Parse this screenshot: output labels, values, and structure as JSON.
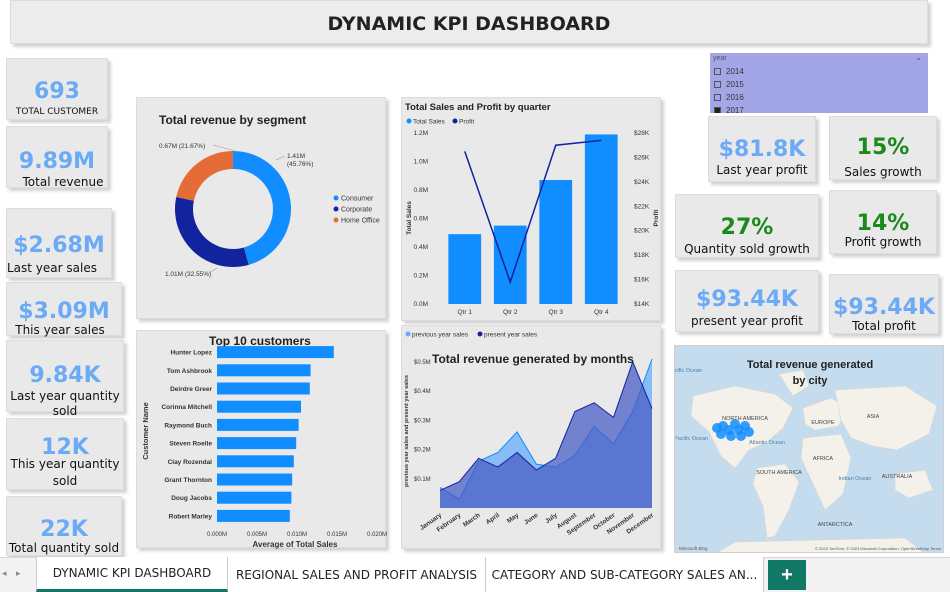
{
  "header": {
    "title": "DYNAMIC KPI DASHBOARD"
  },
  "kpis": {
    "total_customer": {
      "value": "693",
      "label": "TOTAL CUSTOMER"
    },
    "total_revenue": {
      "value": "9.89M",
      "label": "Total revenue"
    },
    "last_year_sales": {
      "value": "$2.68M",
      "label": "Last year sales"
    },
    "this_year_sales": {
      "value": "$3.09M",
      "label": "This year sales"
    },
    "last_year_qty": {
      "value": "9.84K",
      "label_1": "Last year quantity",
      "label_2": "sold"
    },
    "this_year_qty": {
      "value": "12K",
      "label_1": "This year quantity",
      "label_2": "sold"
    },
    "total_qty": {
      "value": "22K",
      "label": "Total quantity sold"
    },
    "last_year_profit": {
      "value": "$81.8K",
      "label": "Last year profit"
    },
    "sales_growth": {
      "value": "15%",
      "label": "Sales growth"
    },
    "qty_growth": {
      "value": "27%",
      "label": "Quantity sold growth"
    },
    "profit_growth": {
      "value": "14%",
      "label": "Profit growth"
    },
    "present_profit": {
      "value": "$93.44K",
      "label": "present year profit"
    },
    "total_profit": {
      "value": "$93.44K",
      "label": "Total profit"
    }
  },
  "slicer": {
    "title": "year",
    "items": [
      "2014",
      "2015",
      "2016",
      "2017"
    ]
  },
  "map": {
    "title_1": "Total revenue generated",
    "title_2": "by city",
    "labels": [
      "NORTH AMERICA",
      "EUROPE",
      "ASIA",
      "AFRICA",
      "SOUTH AMERICA",
      "AUSTRALIA",
      "ANTARCTICA",
      "Pacific Ocean",
      "Atlantic Ocean",
      "Indian Ocean",
      "Pacific Ocean"
    ],
    "footer": "© 2023 TomTom, © 2023 Microsoft Corporation, OpenStreetMap Terms",
    "brand": "Microsoft Bing"
  },
  "tabs": [
    "DYNAMIC KPI DASHBOARD",
    "REGIONAL SALES AND PROFIT ANALYSIS",
    "CATEGORY AND SUB-CATEGORY SALES AN..."
  ],
  "colors": {
    "kpi_blue": "#6aaaf7",
    "growth_green": "#1a8a1a",
    "bar_blue": "#118dff",
    "navy": "#12239e",
    "orange": "#e66c37"
  },
  "chart_data": [
    {
      "type": "pie",
      "title": "Total revenue by segment",
      "categories": [
        "Consumer",
        "Corporate",
        "Home Office"
      ],
      "values": [
        1.41,
        1.01,
        0.67
      ],
      "data_labels": [
        "1.41M (45.76%)",
        "1.01M (32.55%)",
        "0.67M (21.67%)"
      ],
      "legend": "right",
      "colors": [
        "#118dff",
        "#12239e",
        "#e66c37"
      ]
    },
    {
      "type": "bar",
      "title": "Total Sales and Profit by quarter",
      "categories": [
        "Qtr 1",
        "Qtr 2",
        "Qtr 3",
        "Qtr 4"
      ],
      "series": [
        {
          "name": "Total Sales",
          "values": [
            0.49,
            0.55,
            0.87,
            1.19
          ]
        },
        {
          "name": "Profit",
          "values": [
            26500,
            15800,
            27000,
            27400
          ]
        }
      ],
      "ylabel": "Total Sales",
      "y2label": "Profit",
      "yticks": [
        "0.0M",
        "0.2M",
        "0.4M",
        "0.6M",
        "0.8M",
        "1.0M",
        "1.2M"
      ],
      "y2ticks": [
        "$14K",
        "$16K",
        "$18K",
        "$20K",
        "$22K",
        "$24K",
        "$26K",
        "$28K"
      ],
      "ylim": [
        0,
        1.2
      ],
      "y2lim": [
        14000,
        28000
      ],
      "legend": "top-left"
    },
    {
      "type": "bar",
      "title": "Top 10 customers",
      "orientation": "horizontal",
      "categories": [
        "Hunter Lopez",
        "Tom Ashbrook",
        "Deirdre Greer",
        "Corinna Mitchell",
        "Raymond Buch",
        "Steven Roelle",
        "Clay Rozendal",
        "Grant Thornton",
        "Doug Jacobs",
        "Robert Marley"
      ],
      "values": [
        0.0146,
        0.0117,
        0.0116,
        0.0105,
        0.0102,
        0.0099,
        0.0096,
        0.0094,
        0.0093,
        0.0091
      ],
      "xlabel": "Average of Total Sales",
      "ylabel": "Customer Name",
      "xticks": [
        "0.000M",
        "0.005M",
        "0.010M",
        "0.015M",
        "0.020M"
      ],
      "xlim": [
        0,
        0.02
      ]
    },
    {
      "type": "area",
      "title": "Total revenue generated by months",
      "categories": [
        "January",
        "February",
        "March",
        "April",
        "May",
        "June",
        "July",
        "August",
        "September",
        "October",
        "November",
        "December"
      ],
      "series": [
        {
          "name": "previous year sales",
          "values": [
            0.07,
            0.03,
            0.16,
            0.19,
            0.26,
            0.15,
            0.14,
            0.18,
            0.28,
            0.22,
            0.33,
            0.51
          ]
        },
        {
          "name": "present year sales",
          "values": [
            0.06,
            0.09,
            0.17,
            0.14,
            0.19,
            0.13,
            0.17,
            0.33,
            0.36,
            0.31,
            0.5,
            0.34
          ]
        }
      ],
      "ylabel": "previous year sales and present year sales",
      "yticks": [
        "$0.1M",
        "$0.2M",
        "$0.3M",
        "$0.4M",
        "$0.5M"
      ],
      "ylim": [
        0,
        0.52
      ],
      "legend": "top-left"
    }
  ]
}
